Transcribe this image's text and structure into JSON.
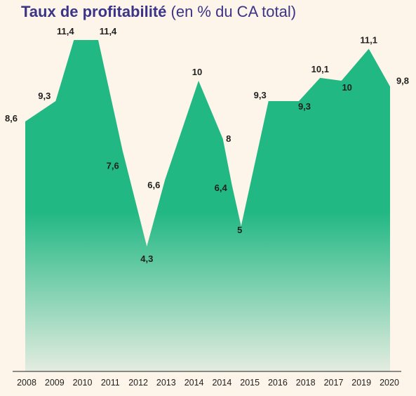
{
  "chart_data": {
    "type": "area",
    "title": "Taux de profitabilité",
    "subtitle": "(en % du CA total)",
    "colors": {
      "area_top": "#22b884",
      "area_bottom": "#e4ece0",
      "title": "#3b3587"
    },
    "y_range": [
      0,
      12
    ],
    "points": [
      {
        "x": 2008,
        "y": 8.6,
        "label": "8,6"
      },
      {
        "x": 2009,
        "y": 9.3,
        "label": "9,3"
      },
      {
        "x": 2009.6,
        "y": 11.4,
        "label": "11,4"
      },
      {
        "x": 2010.4,
        "y": 11.4,
        "label": "11,4"
      },
      {
        "x": 2011.2,
        "y": 7.6,
        "label": "7,6"
      },
      {
        "x": 2012,
        "y": 4.3,
        "label": "4,3"
      },
      {
        "x": 2012.6,
        "y": 6.6,
        "label": "6,6"
      },
      {
        "x": 2013.7,
        "y": 10,
        "label": "10"
      },
      {
        "x": 2014.5,
        "y": 8,
        "label": "8"
      },
      {
        "x": 2014.8,
        "y": 6.4,
        "label": "6,4"
      },
      {
        "x": 2015.1,
        "y": 5,
        "label": "5"
      },
      {
        "x": 2016,
        "y": 9.3,
        "label": "9,3"
      },
      {
        "x": 2017,
        "y": 9.3,
        "label": "9,3"
      },
      {
        "x": 2017.7,
        "y": 10.1,
        "label": "10,1"
      },
      {
        "x": 2018.4,
        "y": 10,
        "label": "10"
      },
      {
        "x": 2019.3,
        "y": 11.1,
        "label": "11,1"
      },
      {
        "x": 2020,
        "y": 9.8,
        "label": "9,8"
      }
    ],
    "x_ticks": [
      "2008",
      "2009",
      "2010",
      "2011",
      "2012",
      "2013",
      "2014",
      "2014",
      "2015",
      "2016",
      "2018",
      "2017",
      "2019",
      "2020"
    ]
  }
}
